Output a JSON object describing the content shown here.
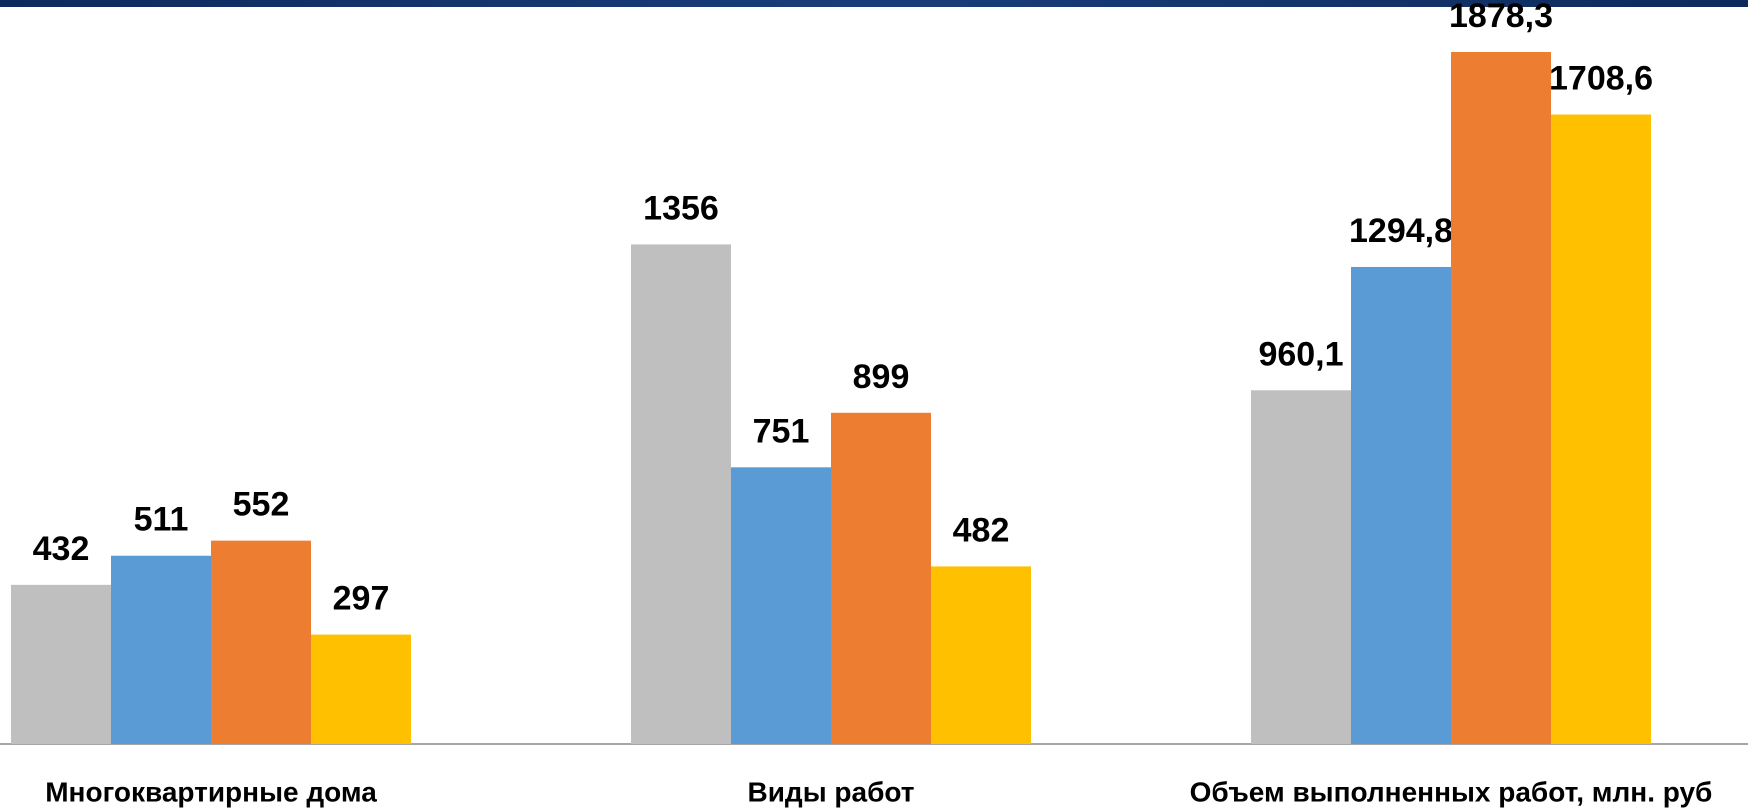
{
  "chart_data": {
    "type": "bar",
    "categories": [
      "Многоквартирные дома",
      "Виды работ",
      "Объем выполненных работ, млн. руб"
    ],
    "series": [
      {
        "color": "#bfbfbf",
        "values": [
          432,
          1356,
          960.1
        ],
        "value_labels": [
          "432",
          "1356",
          "960,1"
        ]
      },
      {
        "color": "#5b9bd5",
        "values": [
          511,
          751,
          1294.8
        ],
        "value_labels": [
          "511",
          "751",
          "1294,8"
        ]
      },
      {
        "color": "#ed7d31",
        "values": [
          552,
          899,
          1878.3
        ],
        "value_labels": [
          "552",
          "899",
          "1878,3"
        ]
      },
      {
        "color": "#ffc000",
        "values": [
          297,
          482,
          1708.6
        ],
        "value_labels": [
          "297",
          "482",
          "1708,6"
        ]
      }
    ]
  }
}
